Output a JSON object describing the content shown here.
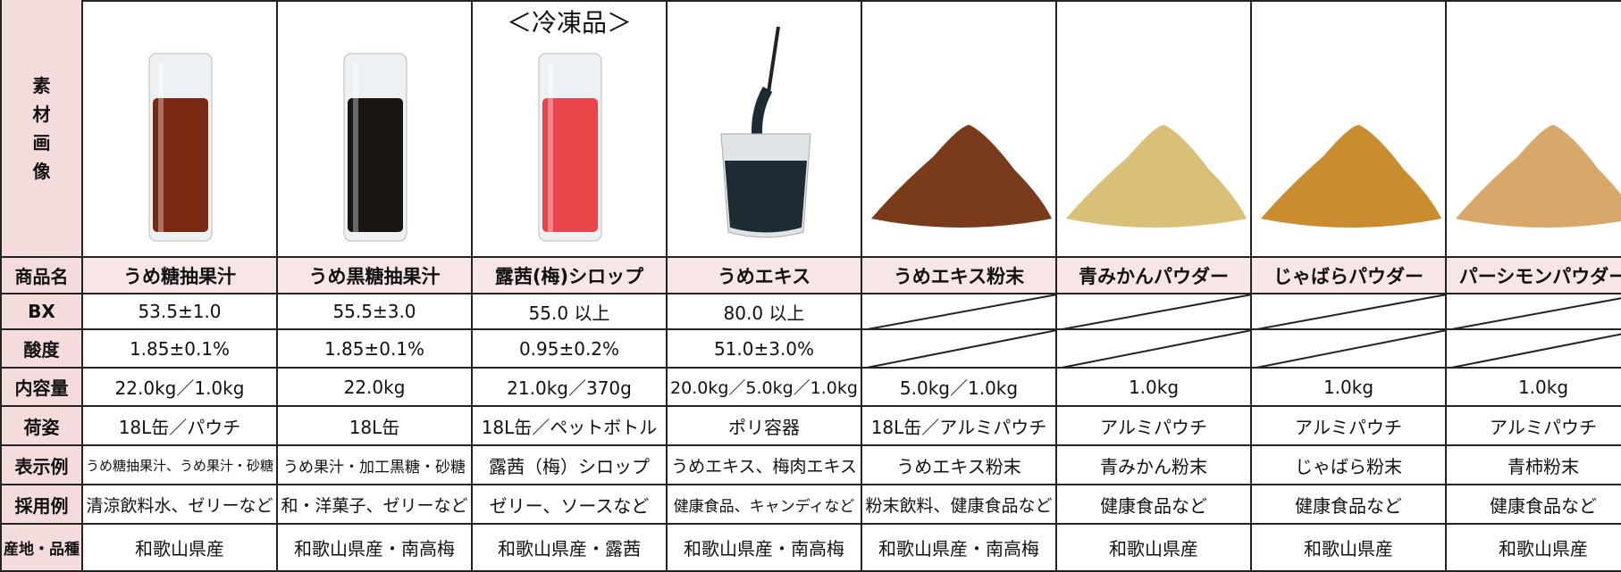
{
  "image_label": "素材画像",
  "row_labels": [
    "商品名",
    "BX",
    "酸度",
    "内容量",
    "荷姿",
    "表示例",
    "採用例",
    "産地・品種"
  ],
  "products": [
    {
      "name": "うめ糖抽果汁",
      "bx": "53.5±1.0",
      "acidity": "1.85±0.1%",
      "content": "22.0kg／1.0kg",
      "package": "18L缶／パウチ",
      "display": "うめ糖抽果汁、うめ果汁・砂糖",
      "usage": "清涼飲料水、ゼリーなど",
      "origin": "和歌山県産"
    },
    {
      "name": "うめ黒糖抽果汁",
      "bx": "55.5±3.0",
      "acidity": "1.85±0.1%",
      "content": "22.0kg",
      "package": "18L缶",
      "display": "うめ果汁・加工黒糖・砂糖",
      "usage": "和・洋菓子、ゼリーなど",
      "origin": "和歌山県産・南高梅"
    },
    {
      "note": "＜冷凍品＞",
      "name": "露茜(梅)シロップ",
      "bx": "55.0 以上",
      "acidity": "0.95±0.2%",
      "content": "21.0kg／370g",
      "package": "18L缶／ペットボトル",
      "display": "露茜（梅）シロップ",
      "usage": "ゼリー、ソースなど",
      "origin": "和歌山県産・露茜"
    },
    {
      "name": "うめエキス",
      "bx": "80.0 以上",
      "acidity": "51.0±3.0%",
      "content": "20.0kg／5.0kg／1.0kg",
      "package": "ポリ容器",
      "display": "うめエキス、梅肉エキス",
      "usage": "健康食品、キャンディなど",
      "origin": "和歌山県産・南高梅"
    },
    {
      "name": "うめエキス粉末",
      "bx": null,
      "acidity": null,
      "content": "5.0kg／1.0kg",
      "package": "18L缶／アルミパウチ",
      "display": "うめエキス粉末",
      "usage": "粉末飲料、健康食品など",
      "origin": "和歌山県産・南高梅"
    },
    {
      "name": "青みかんパウダー",
      "bx": null,
      "acidity": null,
      "content": "1.0kg",
      "package": "アルミパウチ",
      "display": "青みかん粉末",
      "usage": "健康食品など",
      "origin": "和歌山県産"
    },
    {
      "name": "じゃばらパウダー",
      "bx": null,
      "acidity": null,
      "content": "1.0kg",
      "package": "アルミパウチ",
      "display": "じゃばら粉末",
      "usage": "健康食品など",
      "origin": "和歌山県産"
    },
    {
      "name": "パーシモンパウダー",
      "bx": null,
      "acidity": null,
      "content": "1.0kg",
      "package": "アルミパウチ",
      "display": "青柿粉末",
      "usage": "健康食品など",
      "origin": "和歌山県産"
    }
  ]
}
